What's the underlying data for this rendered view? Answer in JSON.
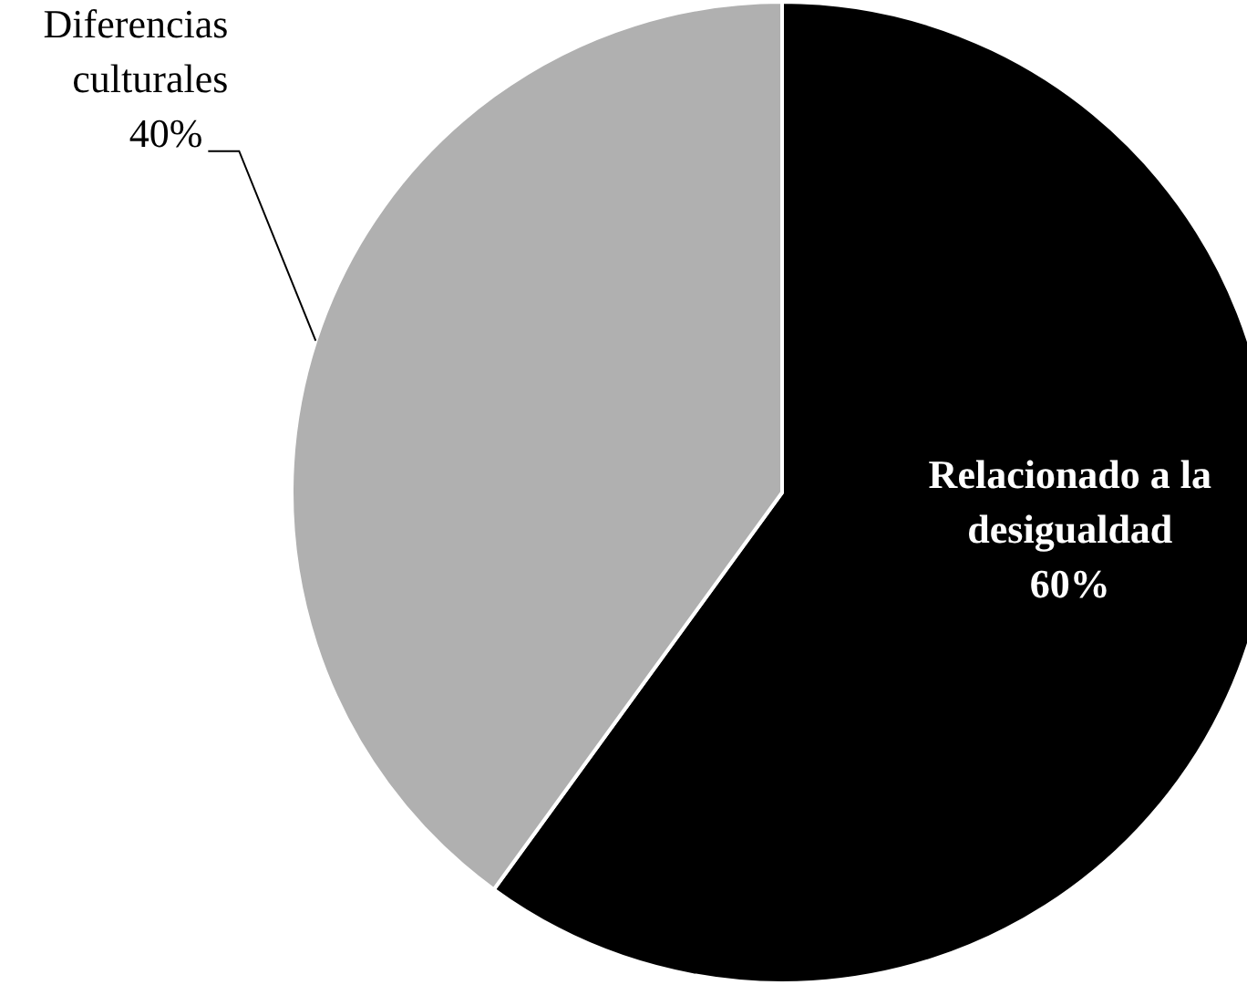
{
  "chart_data": {
    "type": "pie",
    "categories": [
      "Relacionado a la desigualdad",
      "Diferencias culturales"
    ],
    "values": [
      60,
      40
    ],
    "colors": [
      "#000000",
      "#b0b0b0"
    ],
    "value_labels": [
      "60%",
      "40%"
    ],
    "legend": false
  }
}
